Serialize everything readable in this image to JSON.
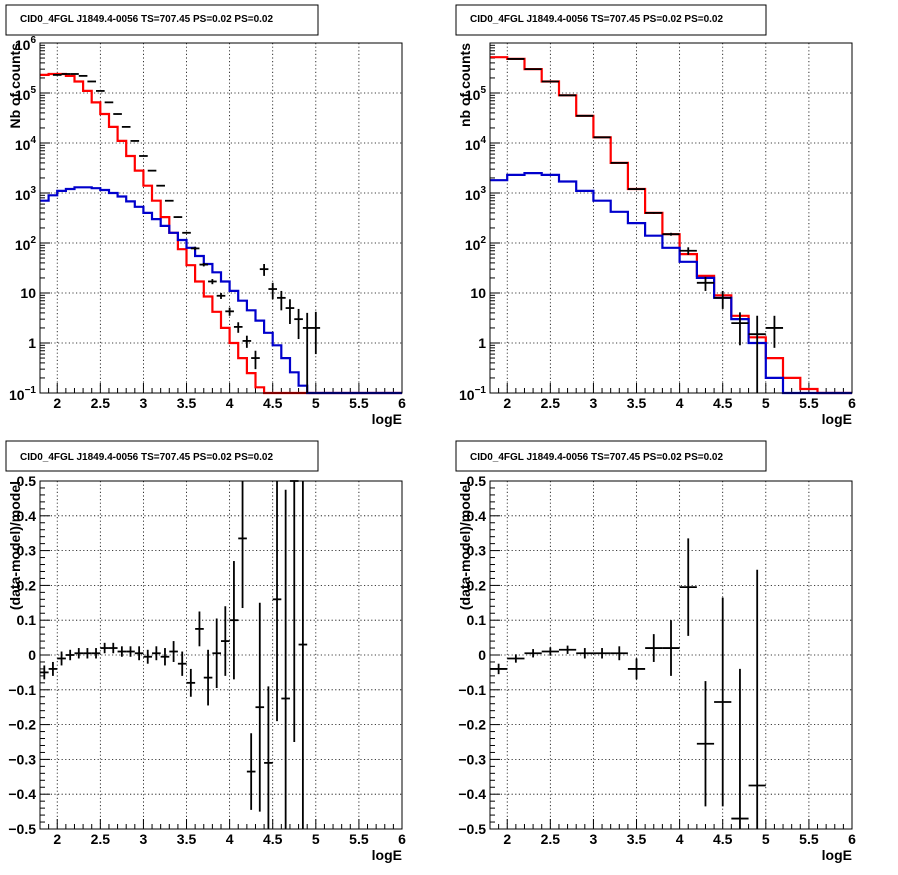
{
  "chart_data": [
    {
      "type": "line",
      "title": "CID0_4FGL J1849.4-0056 TS=707.45 PS=0.02 PS=0.02",
      "xlabel": "logE",
      "ylabel": "Nb of counts",
      "xlim": [
        1.8,
        6
      ],
      "ylim": [
        0.1,
        1000000
      ],
      "yscale": "log",
      "grid": true,
      "xticks": [
        "2",
        "2.5",
        "3",
        "3.5",
        "4",
        "4.5",
        "5",
        "5.5",
        "6"
      ],
      "yticks": [
        {
          "v": 0.1,
          "base": "10",
          "exp": "−1"
        },
        {
          "v": 1,
          "text": "1"
        },
        {
          "v": 10,
          "text": "10"
        },
        {
          "v": 100,
          "base": "10",
          "exp": "2"
        },
        {
          "v": 1000,
          "base": "10",
          "exp": "3"
        },
        {
          "v": 10000,
          "base": "10",
          "exp": "4"
        },
        {
          "v": 100000,
          "base": "10",
          "exp": "5"
        },
        {
          "v": 1000000,
          "base": "10",
          "exp": "6"
        }
      ],
      "series": [
        {
          "color": "#ff0000",
          "style": "hist",
          "bin_width": 0.1,
          "x": [
            1.8,
            1.9,
            2.0,
            2.1,
            2.2,
            2.3,
            2.4,
            2.5,
            2.6,
            2.7,
            2.8,
            2.9,
            3.0,
            3.1,
            3.2,
            3.3,
            3.4,
            3.5,
            3.6,
            3.7,
            3.8,
            3.9,
            4.0,
            4.1,
            4.2,
            4.3,
            4.4,
            4.5,
            4.6,
            4.7,
            4.8,
            4.9,
            5.0,
            5.1,
            5.2,
            5.3,
            5.4,
            5.5,
            5.6,
            5.7,
            5.8,
            5.9
          ],
          "y": [
            230000,
            240000,
            240000,
            220000,
            170000,
            110000,
            65000,
            38000,
            21000,
            11000,
            5500,
            2800,
            1400,
            700,
            330,
            160,
            75,
            36,
            17,
            8.5,
            4.2,
            2,
            1,
            0.5,
            0.25,
            0.13,
            0.1,
            0.1,
            0.1,
            0.1,
            0.1,
            0.1,
            0.1,
            0.1,
            0.1,
            0.1,
            0.1,
            0.1,
            0.1,
            0.1,
            0.1,
            0.1
          ]
        },
        {
          "color": "#0000cc",
          "style": "hist",
          "bin_width": 0.1,
          "x": [
            1.8,
            1.9,
            2.0,
            2.1,
            2.2,
            2.3,
            2.4,
            2.5,
            2.6,
            2.7,
            2.8,
            2.9,
            3.0,
            3.1,
            3.2,
            3.3,
            3.4,
            3.5,
            3.6,
            3.7,
            3.8,
            3.9,
            4.0,
            4.1,
            4.2,
            4.3,
            4.4,
            4.5,
            4.6,
            4.7,
            4.8,
            4.9,
            5.0,
            5.1,
            5.2,
            5.3,
            5.4,
            5.5,
            5.6,
            5.7,
            5.8,
            5.9
          ],
          "y": [
            700,
            900,
            1100,
            1200,
            1300,
            1300,
            1250,
            1150,
            1000,
            850,
            680,
            530,
            400,
            300,
            220,
            160,
            115,
            80,
            55,
            38,
            26,
            17,
            11,
            7,
            4.5,
            2.8,
            1.6,
            0.9,
            0.5,
            0.26,
            0.14,
            0.1,
            0.1,
            0.1,
            0.1,
            0.1,
            0.1,
            0.1,
            0.1,
            0.1,
            0.1,
            0.1
          ]
        }
      ],
      "points": {
        "x": [
          2.0,
          2.1,
          2.2,
          2.3,
          2.4,
          2.5,
          2.6,
          2.7,
          2.8,
          2.9,
          3.0,
          3.1,
          3.2,
          3.3,
          3.4,
          3.5,
          3.6,
          3.7,
          3.8,
          3.9,
          4.0,
          4.1,
          4.2,
          4.3,
          4.4,
          4.5,
          4.6,
          4.7,
          4.8,
          4.9,
          5.0
        ],
        "y": [
          230000,
          240000,
          240000,
          220000,
          170000,
          110000,
          65000,
          38000,
          21000,
          11000,
          5500,
          2800,
          1400,
          700,
          330,
          160,
          78,
          37,
          17,
          8.8,
          4.3,
          2.1,
          1.1,
          0.5,
          30,
          12,
          8,
          5,
          3,
          2,
          2
        ],
        "ylo": [
          225000,
          235000,
          235000,
          215000,
          166000,
          107000,
          63000,
          37000,
          20500,
          10700,
          5350,
          2730,
          1360,
          680,
          320,
          155,
          72,
          34,
          15,
          7.6,
          3.5,
          1.6,
          0.8,
          0.3,
          22,
          7.5,
          4.5,
          2.4,
          1.2,
          0.1,
          0.6
        ],
        "yhi": [
          235000,
          245000,
          245000,
          225000,
          174000,
          113000,
          67000,
          39000,
          21500,
          11300,
          5650,
          2870,
          1440,
          720,
          340,
          165,
          84,
          40,
          19,
          10,
          5.1,
          2.6,
          1.4,
          0.7,
          38,
          16,
          11,
          7.5,
          4.8,
          4,
          4.2
        ],
        "xerr": 0.05
      }
    },
    {
      "type": "line",
      "title": "CID0_4FGL J1849.4-0056 TS=707.45 PS=0.02 PS=0.02",
      "xlabel": "logE",
      "ylabel": "nb of counts",
      "xlim": [
        1.8,
        6
      ],
      "ylim": [
        0.1,
        1000000
      ],
      "yscale": "log",
      "grid": true,
      "xticks": [
        "2",
        "2.5",
        "3",
        "3.5",
        "4",
        "4.5",
        "5",
        "5.5",
        "6"
      ],
      "yticks": [
        {
          "v": 0.1,
          "base": "10",
          "exp": "−1"
        },
        {
          "v": 1,
          "text": "1"
        },
        {
          "v": 10,
          "text": "10"
        },
        {
          "v": 100,
          "base": "10",
          "exp": "2"
        },
        {
          "v": 1000,
          "base": "10",
          "exp": "3"
        },
        {
          "v": 10000,
          "base": "10",
          "exp": "4"
        },
        {
          "v": 100000,
          "base": "10",
          "exp": "5"
        }
      ],
      "series": [
        {
          "color": "#ff0000",
          "style": "hist",
          "bin_width": 0.2,
          "x": [
            1.8,
            2.0,
            2.2,
            2.4,
            2.6,
            2.8,
            3.0,
            3.2,
            3.4,
            3.6,
            3.8,
            4.0,
            4.2,
            4.4,
            4.6,
            4.8,
            5.0,
            5.2,
            5.4,
            5.6,
            5.8
          ],
          "y": [
            520000,
            480000,
            300000,
            170000,
            90000,
            35000,
            13000,
            4000,
            1200,
            400,
            150,
            60,
            22,
            9,
            3.5,
            1.3,
            0.5,
            0.2,
            0.12,
            0.1,
            0.1
          ]
        },
        {
          "color": "#0000cc",
          "style": "hist",
          "bin_width": 0.2,
          "x": [
            1.8,
            2.0,
            2.2,
            2.4,
            2.6,
            2.8,
            3.0,
            3.2,
            3.4,
            3.6,
            3.8,
            4.0,
            4.2,
            4.4,
            4.6,
            4.8,
            5.0,
            5.2,
            5.4,
            5.6,
            5.8
          ],
          "y": [
            1800,
            2300,
            2500,
            2300,
            1700,
            1100,
            700,
            420,
            250,
            140,
            80,
            42,
            20,
            8,
            3,
            1,
            0.2,
            0.1,
            0.1,
            0.1,
            0.1
          ]
        }
      ],
      "points": {
        "x": [
          2.1,
          2.3,
          2.5,
          2.7,
          2.9,
          3.1,
          3.3,
          3.5,
          3.7,
          3.9,
          4.1,
          4.3,
          4.5,
          4.7,
          4.9,
          5.1
        ],
        "y": [
          480000,
          300000,
          170000,
          90000,
          35000,
          13000,
          4000,
          1200,
          400,
          150,
          70,
          16,
          8,
          2.5,
          1.5,
          2
        ],
        "ylo": [
          475000,
          297000,
          168000,
          89000,
          34600,
          12800,
          3900,
          1170,
          385,
          140,
          58,
          11,
          4.8,
          0.9,
          0.1,
          0.8
        ],
        "yhi": [
          485000,
          303000,
          172000,
          91000,
          35400,
          13200,
          4100,
          1230,
          415,
          160,
          82,
          21,
          11,
          4.1,
          3.5,
          3.5
        ],
        "xerr": 0.1
      }
    },
    {
      "type": "scatter",
      "title": "CID0_4FGL J1849.4-0056 TS=707.45 PS=0.02 PS=0.02",
      "xlabel": "logE",
      "ylabel": "(data-model)/model",
      "xlim": [
        1.8,
        6
      ],
      "ylim": [
        -0.5,
        0.5
      ],
      "grid": true,
      "xticks": [
        "2",
        "2.5",
        "3",
        "3.5",
        "4",
        "4.5",
        "5",
        "5.5",
        "6"
      ],
      "yticks": [
        "−0.5",
        "−0.4",
        "−0.3",
        "−0.2",
        "−0.1",
        "0",
        "0.1",
        "0.2",
        "0.3",
        "0.4",
        "0.5"
      ],
      "points": {
        "x": [
          1.85,
          1.95,
          2.05,
          2.15,
          2.25,
          2.35,
          2.45,
          2.55,
          2.65,
          2.75,
          2.85,
          2.95,
          3.05,
          3.15,
          3.25,
          3.35,
          3.45,
          3.55,
          3.65,
          3.75,
          3.85,
          3.95,
          4.05,
          4.15,
          4.25,
          4.35,
          4.45,
          4.55,
          4.65,
          4.75,
          4.85
        ],
        "y": [
          -0.05,
          -0.04,
          -0.01,
          0.0,
          0.005,
          0.005,
          0.005,
          0.02,
          0.02,
          0.01,
          0.01,
          0.005,
          -0.005,
          0.005,
          -0.005,
          0.01,
          -0.025,
          -0.08,
          0.075,
          -0.065,
          0.005,
          0.04,
          0.1,
          0.335,
          -0.335,
          -0.15,
          -0.31,
          0.16,
          -0.125,
          0.5,
          0.03
        ],
        "yerr": [
          0.02,
          0.02,
          0.02,
          0.015,
          0.015,
          0.015,
          0.015,
          0.015,
          0.015,
          0.015,
          0.015,
          0.02,
          0.02,
          0.02,
          0.025,
          0.03,
          0.035,
          0.04,
          0.05,
          0.08,
          0.1,
          0.1,
          0.17,
          0.2,
          0.11,
          0.3,
          0.22,
          0.35,
          0.6,
          0.75,
          0.8
        ],
        "xerr": 0.05
      }
    },
    {
      "type": "scatter",
      "title": "CID0_4FGL J1849.4-0056 TS=707.45 PS=0.02 PS=0.02",
      "xlabel": "logE",
      "ylabel": "(data-model)/model",
      "xlim": [
        1.8,
        6
      ],
      "ylim": [
        -0.5,
        0.5
      ],
      "grid": true,
      "xticks": [
        "2",
        "2.5",
        "3",
        "3.5",
        "4",
        "4.5",
        "5",
        "5.5",
        "6"
      ],
      "yticks": [
        "−0.5",
        "−0.4",
        "−0.3",
        "−0.2",
        "−0.1",
        "0",
        "0.1",
        "0.2",
        "0.3",
        "0.4",
        "0.5"
      ],
      "points": {
        "x": [
          1.9,
          2.1,
          2.3,
          2.5,
          2.7,
          2.9,
          3.1,
          3.3,
          3.5,
          3.7,
          3.9,
          4.1,
          4.3,
          4.5,
          4.7,
          4.9
        ],
        "y": [
          -0.04,
          -0.01,
          0.005,
          0.01,
          0.015,
          0.005,
          0.005,
          0.005,
          -0.04,
          0.02,
          0.02,
          0.195,
          -0.255,
          -0.135,
          -0.47,
          -0.375
        ],
        "yerr": [
          0.015,
          0.012,
          0.012,
          0.012,
          0.012,
          0.015,
          0.015,
          0.02,
          0.03,
          0.04,
          0.08,
          0.14,
          0.18,
          0.3,
          0.43,
          0.62
        ],
        "xerr": 0.1
      }
    }
  ]
}
